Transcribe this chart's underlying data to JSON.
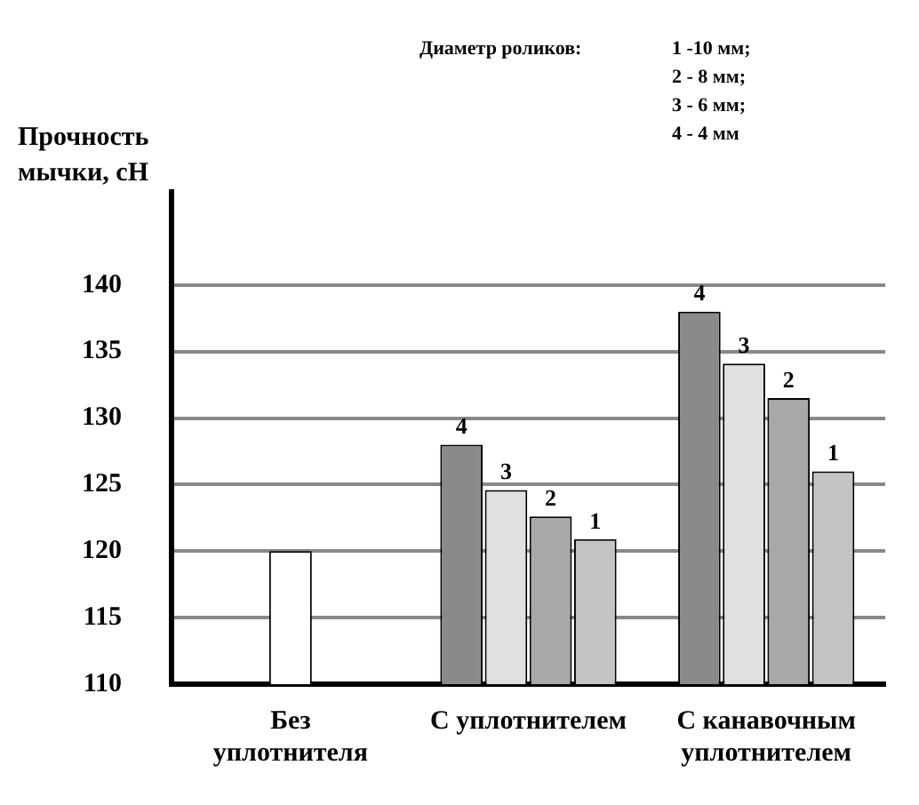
{
  "chart_data": {
    "type": "bar",
    "ylabel": "Прочность мычки, сН",
    "categories": [
      "Без уплотнителя",
      "С уплотнителем",
      "С канавочным уплотнителем"
    ],
    "series": [
      {
        "color": "#ffffff",
        "values": [
          120,
          null,
          null
        ]
      },
      {
        "name": "4",
        "color": "#8a8a8a",
        "values": [
          null,
          128,
          138
        ]
      },
      {
        "name": "3",
        "color": "#e0e0e0",
        "values": [
          null,
          124.6,
          134.1
        ]
      },
      {
        "name": "2",
        "color": "#a8a8a8",
        "values": [
          null,
          122.6,
          131.5
        ]
      },
      {
        "name": "1",
        "color": "#c4c4c4",
        "values": [
          null,
          120.9,
          126
        ]
      }
    ],
    "ylim": [
      110,
      147
    ],
    "yticks": [
      110,
      115,
      120,
      125,
      130,
      135,
      140
    ],
    "grid": "y",
    "legend": false,
    "annotations": [
      "Диаметр роликов:",
      "1 -10 мм;\n2 - 8 мм;\n3 - 6 мм;\n4 - 4 мм"
    ]
  }
}
